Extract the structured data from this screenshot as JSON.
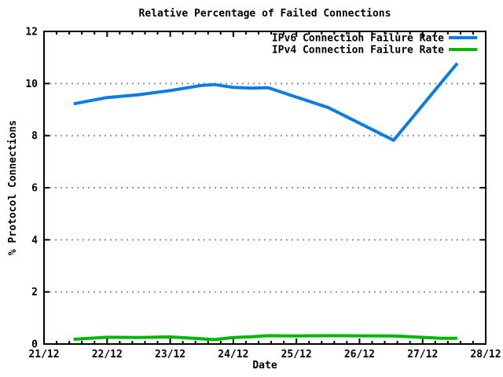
{
  "colors": {
    "background": "#ffffff",
    "axis": "#000000",
    "grid": "#949494",
    "ipv6_line": "#0a7ce6",
    "ipv4_line": "#00b800"
  },
  "chart_data": {
    "type": "line",
    "title": "Relative Percentage of Failed Connections",
    "xlabel": "Date",
    "ylabel": "% Protocol Connections",
    "x_tick_labels": [
      "21/12",
      "22/12",
      "23/12",
      "24/12",
      "25/12",
      "26/12",
      "27/12",
      "28/12"
    ],
    "x_range_days": [
      0,
      7
    ],
    "x_minor_divisions_per_day": 5,
    "y_ticks": [
      0,
      2,
      4,
      6,
      8,
      10,
      12
    ],
    "ylim": [
      0,
      12
    ],
    "grid": "horizontal-dotted",
    "legend_position": "top-right-inside",
    "x_days": [
      0.47,
      1.0,
      1.5,
      2.0,
      2.5,
      2.7,
      3.0,
      3.3,
      3.55,
      4.0,
      4.5,
      5.54,
      5.8,
      6.3,
      6.55
    ],
    "series": [
      {
        "name": "IPv6 Connection Failure Rate",
        "color": "#0a7ce6",
        "values": [
          9.22,
          9.46,
          9.57,
          9.73,
          9.93,
          9.96,
          9.85,
          9.82,
          9.84,
          9.48,
          9.08,
          7.82,
          8.58,
          10.05,
          10.78
        ]
      },
      {
        "name": "IPv4 Connection Failure Rate",
        "color": "#00b800",
        "values": [
          0.18,
          0.26,
          0.25,
          0.27,
          0.2,
          0.17,
          0.25,
          0.28,
          0.32,
          0.31,
          0.32,
          0.31,
          0.28,
          0.22,
          0.22
        ]
      }
    ]
  }
}
